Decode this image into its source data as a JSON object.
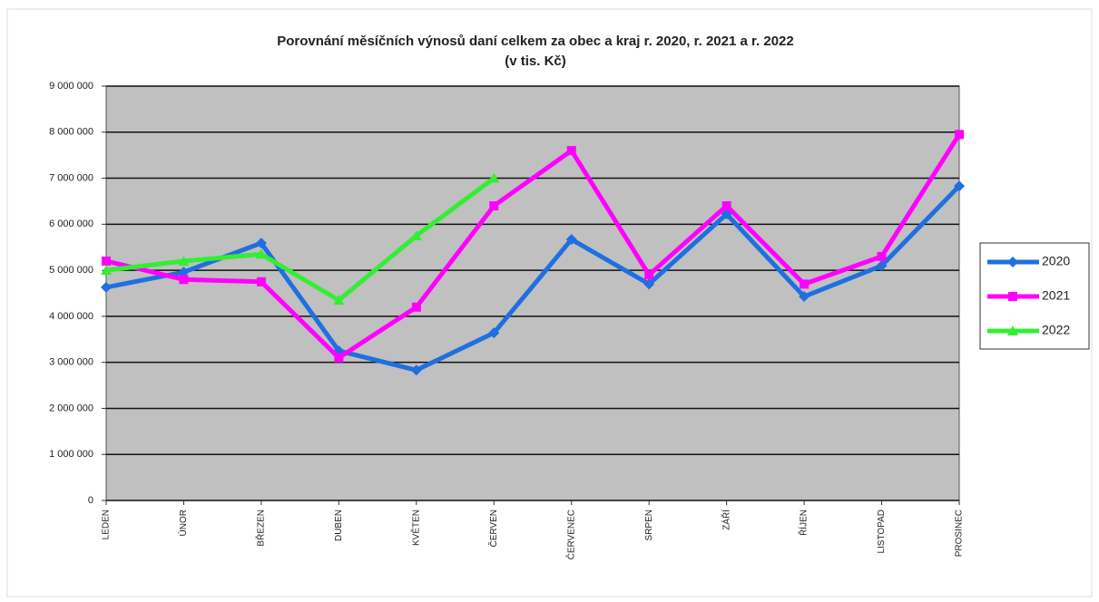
{
  "chart_data": {
    "type": "line",
    "title": "Porovnání měsíčních výnosů daní celkem za obec a kraj r. 2020, r. 2021 a r. 2022",
    "subtitle": "(v tis. Kč)",
    "categories": [
      "LEDEN",
      "ÚNOR",
      "BŘEZEN",
      "DUBEN",
      "KVĚTEN",
      "ČERVEN",
      "ČERVENEC",
      "SRPEN",
      "ZÁŘÍ",
      "ŘÍJEN",
      "LISTOPAD",
      "PROSINEC"
    ],
    "series": [
      {
        "name": "2020",
        "color": "#1f6fe0",
        "values": [
          4630000,
          4960000,
          5590000,
          3250000,
          2830000,
          3640000,
          5670000,
          4700000,
          6220000,
          4430000,
          5100000,
          6830000
        ]
      },
      {
        "name": "2021",
        "color": "#ff00ff",
        "values": [
          5200000,
          4800000,
          4750000,
          3100000,
          4200000,
          6400000,
          7600000,
          4900000,
          6400000,
          4700000,
          5300000,
          7950000
        ]
      },
      {
        "name": "2022",
        "color": "#33ee33",
        "values": [
          5000000,
          5200000,
          5350000,
          4350000,
          5750000,
          7000000,
          null,
          null,
          null,
          null,
          null,
          null
        ]
      }
    ],
    "ylim": [
      0,
      9000000
    ],
    "yticks": [
      0,
      {
        "value": 1000000,
        "label": "1 000 000"
      },
      {
        "value": 2000000,
        "label": "2 000 000"
      },
      {
        "value": 3000000,
        "label": "3 000 000"
      },
      {
        "value": 4000000,
        "label": "4 000 000"
      },
      {
        "value": 5000000,
        "label": "5 000 000"
      },
      {
        "value": 6000000,
        "label": "6 000 000"
      },
      {
        "value": 7000000,
        "label": "7 000 000"
      },
      {
        "value": 8000000,
        "label": "8 000 000"
      },
      {
        "value": 9000000,
        "label": "9 000 000"
      }
    ],
    "grid": true,
    "legend": "right"
  }
}
